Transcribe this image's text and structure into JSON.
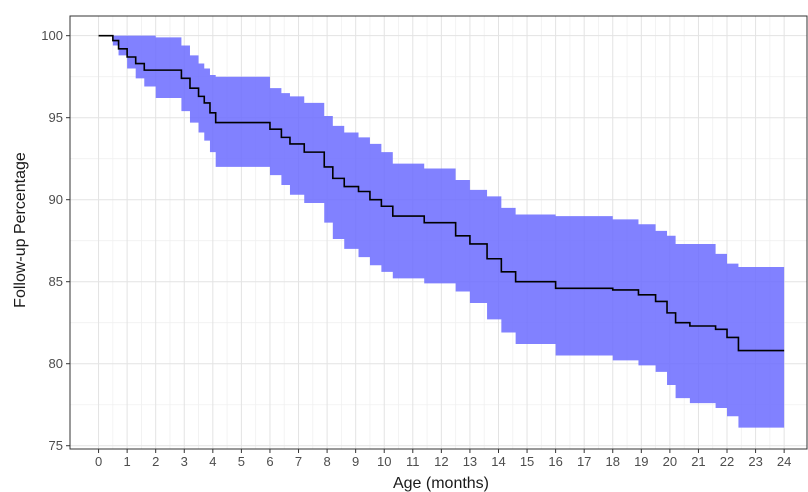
{
  "chart_data": {
    "type": "line",
    "title": "",
    "xlabel": "Age (months)",
    "ylabel": "Follow-up Percentage",
    "xlim": [
      -1,
      24.8
    ],
    "ylim": [
      74.8,
      101.2
    ],
    "x_ticks": [
      0,
      1,
      2,
      3,
      4,
      5,
      6,
      7,
      8,
      9,
      10,
      11,
      12,
      13,
      14,
      15,
      16,
      17,
      18,
      19,
      20,
      21,
      22,
      23,
      24
    ],
    "y_ticks": [
      75,
      80,
      85,
      90,
      95,
      100
    ],
    "grid": true,
    "legend": "none",
    "colors": {
      "band": "#6b6bff",
      "line": "#000000",
      "grid": "#e3e3e3",
      "panel_border": "#333333"
    },
    "series": [
      {
        "kind": "step",
        "x": [
          0,
          0.5,
          0.7,
          1.0,
          1.3,
          1.6,
          2.0,
          2.9,
          3.2,
          3.5,
          3.7,
          3.9,
          4.1,
          4.3,
          6.0,
          6.4,
          6.7,
          7.2,
          7.9,
          8.2,
          8.6,
          9.1,
          9.5,
          9.9,
          10.3,
          11.4,
          12.5,
          13.0,
          13.6,
          14.1,
          14.6,
          16.0,
          18.0,
          18.9,
          19.5,
          19.9,
          20.2,
          20.7,
          21.6,
          22.0,
          22.4,
          24.0
        ],
        "y": [
          100,
          99.7,
          99.2,
          98.7,
          98.3,
          97.9,
          97.9,
          97.4,
          96.8,
          96.3,
          95.9,
          95.3,
          94.7,
          94.7,
          94.3,
          93.8,
          93.4,
          92.9,
          92.0,
          91.3,
          90.8,
          90.5,
          90.0,
          89.6,
          89.0,
          88.6,
          87.8,
          87.3,
          86.4,
          85.6,
          85.0,
          84.6,
          84.5,
          84.2,
          83.8,
          83.1,
          82.5,
          82.3,
          82.1,
          81.6,
          80.8,
          80.8
        ]
      },
      {
        "kind": "confidence-band",
        "x": [
          0,
          0.5,
          0.7,
          1.0,
          1.3,
          1.6,
          2.0,
          2.9,
          3.2,
          3.5,
          3.7,
          3.9,
          4.1,
          4.3,
          6.0,
          6.4,
          6.7,
          7.2,
          7.9,
          8.2,
          8.6,
          9.1,
          9.5,
          9.9,
          10.3,
          11.4,
          12.5,
          13.0,
          13.6,
          14.1,
          14.6,
          16.0,
          18.0,
          18.9,
          19.5,
          19.9,
          20.2,
          20.7,
          21.6,
          22.0,
          22.4,
          24.0
        ],
        "upper": [
          100,
          100,
          100,
          100,
          100,
          100,
          99.9,
          99.4,
          98.8,
          98.3,
          98.0,
          97.6,
          97.5,
          97.5,
          96.8,
          96.5,
          96.3,
          95.9,
          95.1,
          94.5,
          94.1,
          93.8,
          93.4,
          92.9,
          92.2,
          91.9,
          91.2,
          90.6,
          90.2,
          89.5,
          89.1,
          89.0,
          88.8,
          88.5,
          88.1,
          87.8,
          87.3,
          87.3,
          86.7,
          86.1,
          85.9,
          85.9
        ],
        "lower": [
          100,
          99.4,
          98.8,
          98.0,
          97.4,
          96.9,
          96.2,
          95.4,
          94.7,
          94.1,
          93.6,
          92.9,
          92.0,
          92.0,
          91.5,
          90.9,
          90.3,
          89.8,
          88.6,
          87.6,
          87.0,
          86.5,
          86.0,
          85.6,
          85.2,
          84.9,
          84.4,
          83.7,
          82.7,
          81.9,
          81.2,
          80.5,
          80.2,
          79.9,
          79.5,
          78.7,
          77.9,
          77.6,
          77.3,
          76.8,
          76.1,
          76.1
        ]
      }
    ]
  }
}
